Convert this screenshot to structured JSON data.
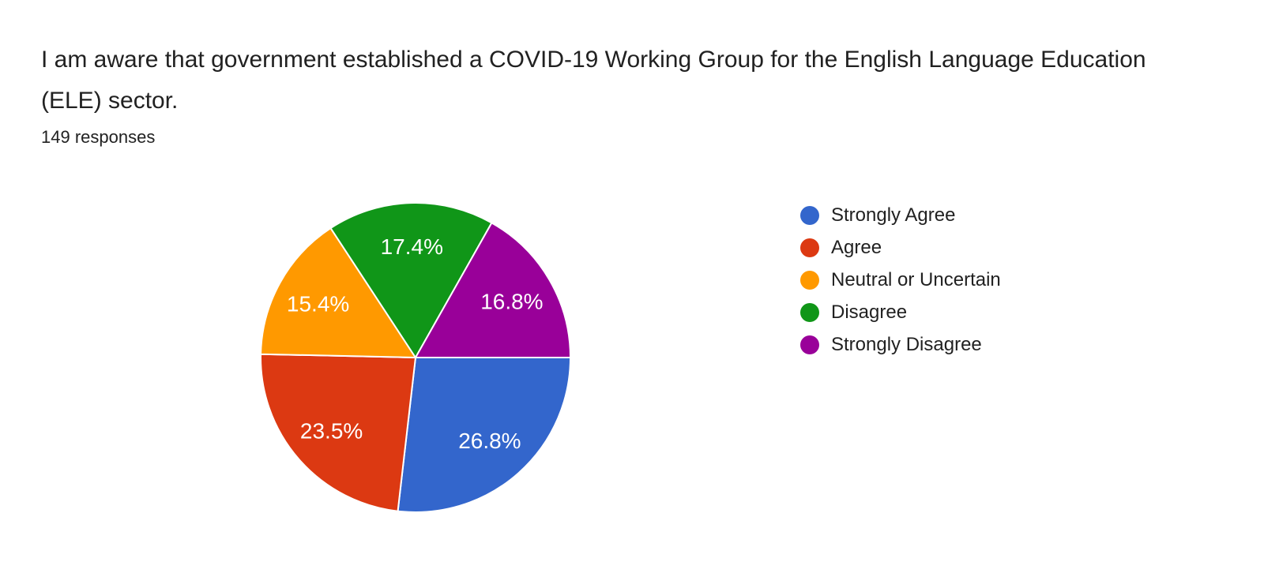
{
  "chart_data": {
    "type": "pie",
    "title": "I am aware that government established a COVID-19 Working Group for the English Language Education (ELE) sector.",
    "subtitle": "149 responses",
    "total_responses": 149,
    "categories": [
      "Strongly Agree",
      "Agree",
      "Neutral or Uncertain",
      "Disagree",
      "Strongly Disagree"
    ],
    "values": [
      26.8,
      23.5,
      15.4,
      17.4,
      16.8
    ],
    "slice_labels": [
      "26.8%",
      "23.5%",
      "15.4%",
      "17.4%",
      "16.8%"
    ],
    "colors": [
      "#3366CC",
      "#DC3912",
      "#FF9900",
      "#109618",
      "#990099"
    ],
    "start_angle_deg": 0,
    "direction": "clockwise",
    "legend_position": "right",
    "slice_border_color": "#ffffff",
    "label_text_color": "#ffffff",
    "background_color": "#ffffff",
    "text_color": "#212121"
  }
}
